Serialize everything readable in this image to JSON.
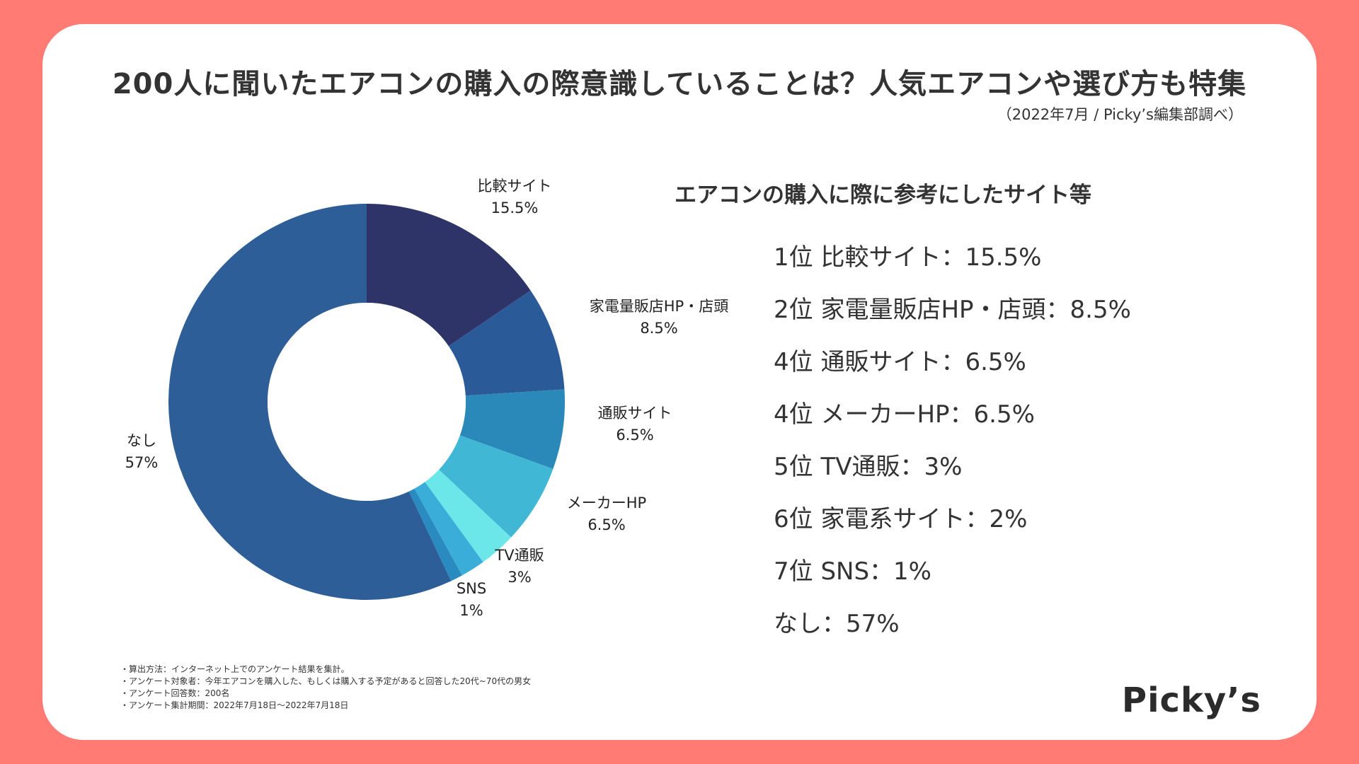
{
  "title": "200人に聞いたエアコンの購入の際意識していることは？人気エアコンや選び方も特集",
  "subtitle": "（2022年7月 / Picky’s編集部調べ）",
  "ranking": {
    "heading": "エアコンの購入に際に参考にしたサイト等",
    "items": [
      "1位 比較サイト：15.5%",
      "2位 家電量販店HP・店頭：8.5%",
      "4位 通販サイト：6.5%",
      "4位 メーカーHP：6.5%",
      "5位 TV通販：3%",
      "6位 家電系サイト：2%",
      "7位 SNS：1%",
      "なし：57%"
    ]
  },
  "notes": [
    "・算出方法：インターネット上でのアンケート結果を集計。",
    "・アンケート対象者：今年エアコンを購入した、もしくは購入する予定があると回答した20代~70代の男女",
    "・アンケート回答数：200名",
    "・アンケート集計期間：2022年7月18日〜2022年7月18日"
  ],
  "brand": "Picky’s",
  "chart_data": {
    "type": "pie",
    "subtype": "donut",
    "title": "エアコンの購入に際に参考にしたサイト等",
    "unit": "%",
    "slices": [
      {
        "name": "比較サイト",
        "value": 15.5,
        "label": "15.5%",
        "color": "#2E3468",
        "labeled": true
      },
      {
        "name": "家電量販店HP・店頭",
        "value": 8.5,
        "label": "8.5%",
        "color": "#2B5A98",
        "labeled": true
      },
      {
        "name": "通販サイト",
        "value": 6.5,
        "label": "6.5%",
        "color": "#2A89B9",
        "labeled": true
      },
      {
        "name": "メーカーHP",
        "value": 6.5,
        "label": "6.5%",
        "color": "#41B7D6",
        "labeled": true
      },
      {
        "name": "TV通販",
        "value": 3,
        "label": "3%",
        "color": "#6BE6E9",
        "labeled": true
      },
      {
        "name": "家電系サイト",
        "value": 2,
        "label": "2%",
        "color": "#3AAED8",
        "labeled": false
      },
      {
        "name": "SNS",
        "value": 1,
        "label": "1%",
        "color": "#2A8BC0",
        "labeled": true
      },
      {
        "name": "なし",
        "value": 57,
        "label": "57%",
        "color": "#2E5E97",
        "labeled": true
      }
    ]
  }
}
